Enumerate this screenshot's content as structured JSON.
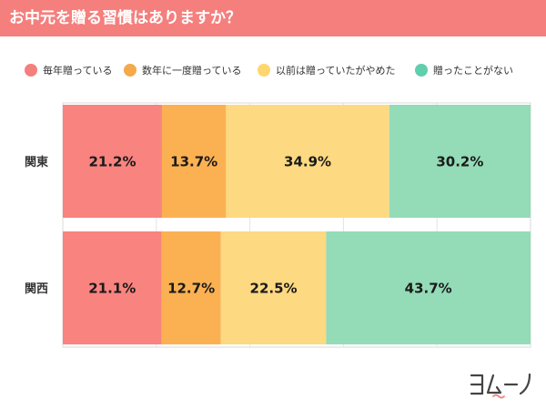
{
  "header": {
    "title": "お中元を贈る習慣はありますか？"
  },
  "colors": {
    "header_bg": "#f47f7d",
    "series": [
      "#f8837f",
      "#fbb152",
      "#fdd981",
      "#94dbb8"
    ],
    "legend_dots": [
      "#f47f7d",
      "#f6a94a",
      "#fdd66e",
      "#5fcfad"
    ]
  },
  "chart_data": {
    "type": "bar",
    "orientation": "horizontal",
    "stacked": true,
    "title": "お中元を贈る習慣はありますか？",
    "categories": [
      "関東",
      "関西"
    ],
    "series": [
      {
        "name": "毎年贈っている",
        "values": [
          21.2,
          21.1
        ]
      },
      {
        "name": "数年に一度贈っている",
        "values": [
          13.7,
          12.7
        ]
      },
      {
        "name": "以前は贈っていたがやめた",
        "values": [
          34.9,
          22.5
        ]
      },
      {
        "name": "贈ったことがない",
        "values": [
          30.2,
          43.7
        ]
      }
    ],
    "value_suffix": "%",
    "xlim": [
      0,
      100
    ],
    "legend": "top",
    "grid": true
  },
  "logo": {
    "text": "ヨムーノ"
  }
}
